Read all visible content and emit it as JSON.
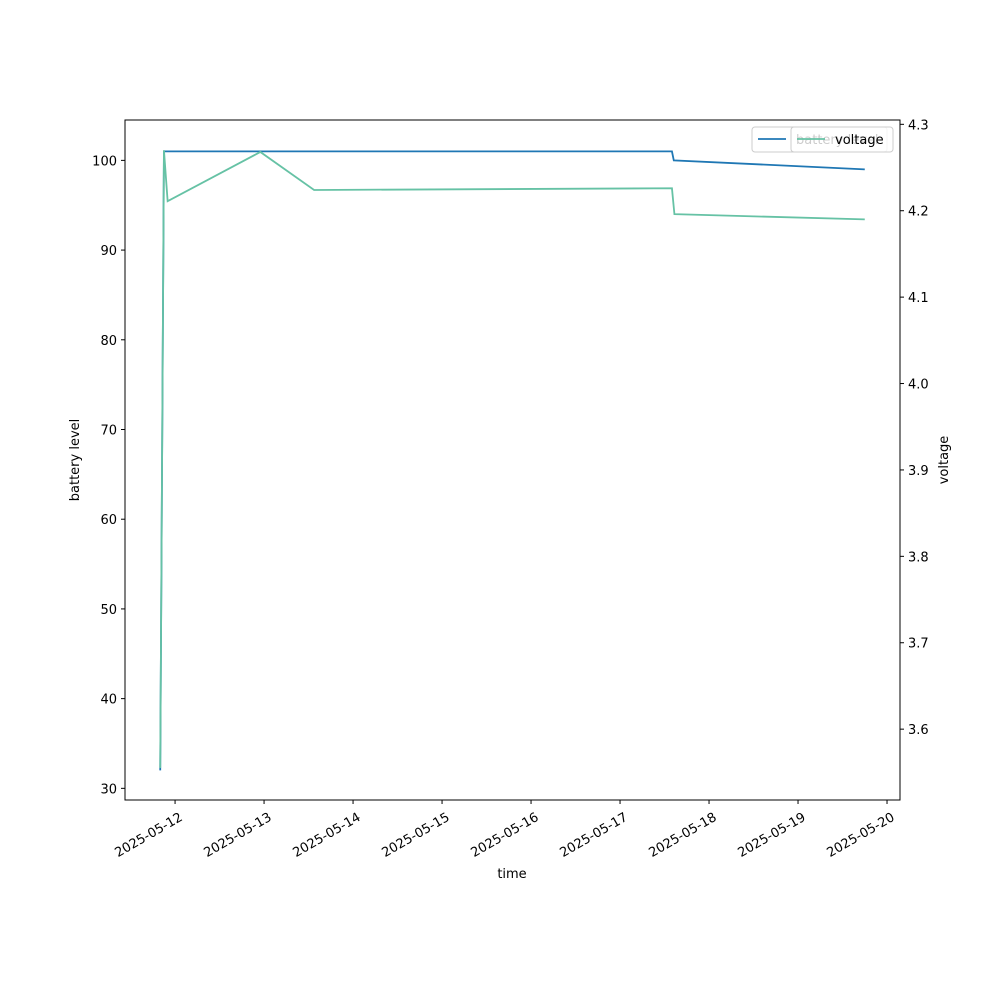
{
  "chart_data": {
    "type": "line",
    "xlabel": "time",
    "ylabel": "battery level",
    "y2label": "voltage",
    "xlim": [
      "2025-05-11 10:30",
      "2025-05-20 03:30"
    ],
    "xticks": [
      "2025-05-12",
      "2025-05-13",
      "2025-05-14",
      "2025-05-15",
      "2025-05-16",
      "2025-05-17",
      "2025-05-18",
      "2025-05-19",
      "2025-05-20"
    ],
    "ylim": [
      28.7,
      104.5
    ],
    "yticks": [
      30,
      40,
      50,
      60,
      70,
      80,
      90,
      100
    ],
    "y2lim": [
      3.518,
      4.305
    ],
    "y2ticks": [
      3.6,
      3.7,
      3.8,
      3.9,
      {
        "value": 4,
        "label": "4.0"
      },
      4.1,
      4.2,
      4.3
    ],
    "legend": "upper right",
    "series": [
      {
        "name": "battery level",
        "color": "#1f77b4",
        "x": [
          "2025-05-11 20:00",
          "2025-05-11 21:00",
          "2025-05-17 14:00",
          "2025-05-17 14:30",
          "2025-05-19 18:00"
        ],
        "values": [
          32,
          101,
          101,
          100,
          99
        ]
      },
      {
        "name": "voltage",
        "color": "#66c2a5",
        "axis": "y2",
        "x": [
          "2025-05-11 20:00",
          "2025-05-11 21:00",
          "2025-05-11 22:00",
          "2025-05-12 23:00",
          "2025-05-13 13:30",
          "2025-05-17 14:00",
          "2025-05-17 14:40",
          "2025-05-19 18:00"
        ],
        "values": [
          3.555,
          4.27,
          4.211,
          4.268,
          4.224,
          4.226,
          4.196,
          4.19
        ]
      }
    ]
  }
}
